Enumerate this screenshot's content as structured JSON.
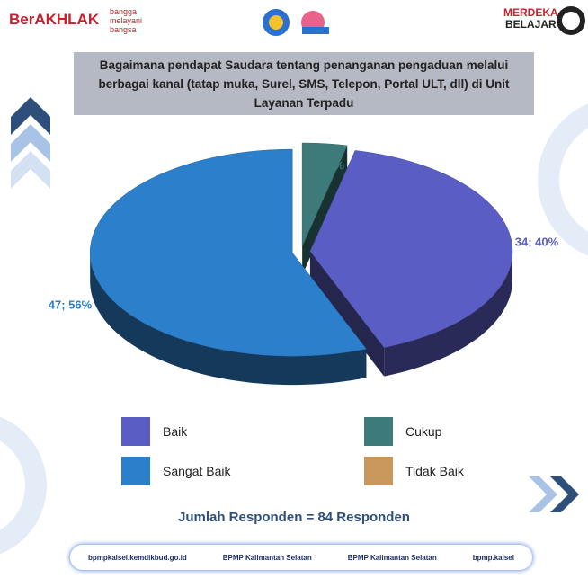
{
  "header": {
    "left_logo": "BerAKHLAK",
    "left_tagline": [
      "bangga",
      "melayani",
      "bangsa"
    ],
    "right_logo": [
      "MERDEKA",
      "BELAJAR"
    ]
  },
  "chart_data": {
    "type": "pie",
    "title": "Bagaimana pendapat Saudara tentang penanganan pengaduan melalui berbagai kanal (tatap muka, Surel, SMS, Telepon, Portal ULT, dll) di Unit Layanan Terpadu",
    "categories": [
      "Baik",
      "Cukup",
      "Sangat Baik",
      "Tidak Baik"
    ],
    "values": [
      34,
      3,
      47,
      0
    ],
    "value_labels": [
      "34; 40%",
      "3; 4%",
      "47; 56%",
      null
    ],
    "colors": [
      "#5a5ec4",
      "#3d7b7a",
      "#2c7fca",
      "#c9965b"
    ],
    "legend": "bottom"
  },
  "summary": "Jumlah Responden = 84 Responden",
  "footer": [
    "bpmpkalsel.kemdikbud.go.id",
    "BPMP Kalimantan Selatan",
    "BPMP Kalimantan Selatan",
    "bpmp.kalsel"
  ]
}
